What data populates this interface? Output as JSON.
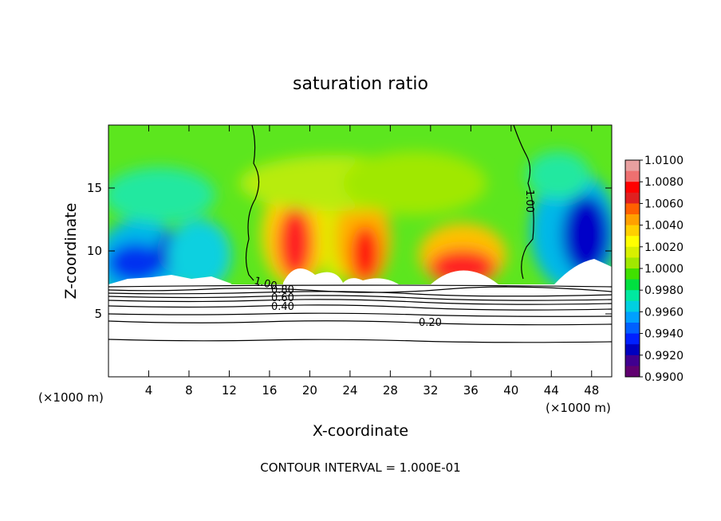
{
  "chart_data": {
    "type": "heatmap",
    "title": "saturation ratio",
    "xlabel": "X-coordinate",
    "ylabel": "Z-coordinate",
    "x_unit": "(×1000 m)",
    "xlim": [
      0,
      50
    ],
    "ylim": [
      0,
      20
    ],
    "x_ticks": [
      4,
      8,
      12,
      16,
      20,
      24,
      28,
      32,
      36,
      40,
      44,
      48
    ],
    "y_ticks": [
      5,
      10,
      15
    ],
    "footer": "CONTOUR INTERVAL = 1.000E-01",
    "colorbar": {
      "levels": [
        "1.0100",
        "1.0080",
        "1.0060",
        "1.0040",
        "1.0020",
        "1.0000",
        "0.9980",
        "0.9960",
        "0.9940",
        "0.9920",
        "0.9900"
      ],
      "colors": [
        "#e8a0a0",
        "#ee7070",
        "#ff0000",
        "#e02020",
        "#ff6000",
        "#ffa000",
        "#ffd000",
        "#ffff00",
        "#d8f000",
        "#a0e800",
        "#40e000",
        "#00e040",
        "#00e8a0",
        "#00d0e0",
        "#00a0ff",
        "#0060ff",
        "#0020ff",
        "#0000c0",
        "#400090",
        "#600070"
      ]
    },
    "contour_labels": [
      {
        "text": "1.00",
        "x": 14.8,
        "z": 7.8
      },
      {
        "text": "1.00",
        "x": 42.0,
        "z": 13.5
      },
      {
        "text": "0.80",
        "x": 17.5,
        "z": 6.9
      },
      {
        "text": "0.60",
        "x": 17.5,
        "z": 6.4
      },
      {
        "text": "0.40",
        "x": 17.5,
        "z": 5.7
      },
      {
        "text": "0.20",
        "x": 31.5,
        "z": 4.4
      }
    ]
  }
}
